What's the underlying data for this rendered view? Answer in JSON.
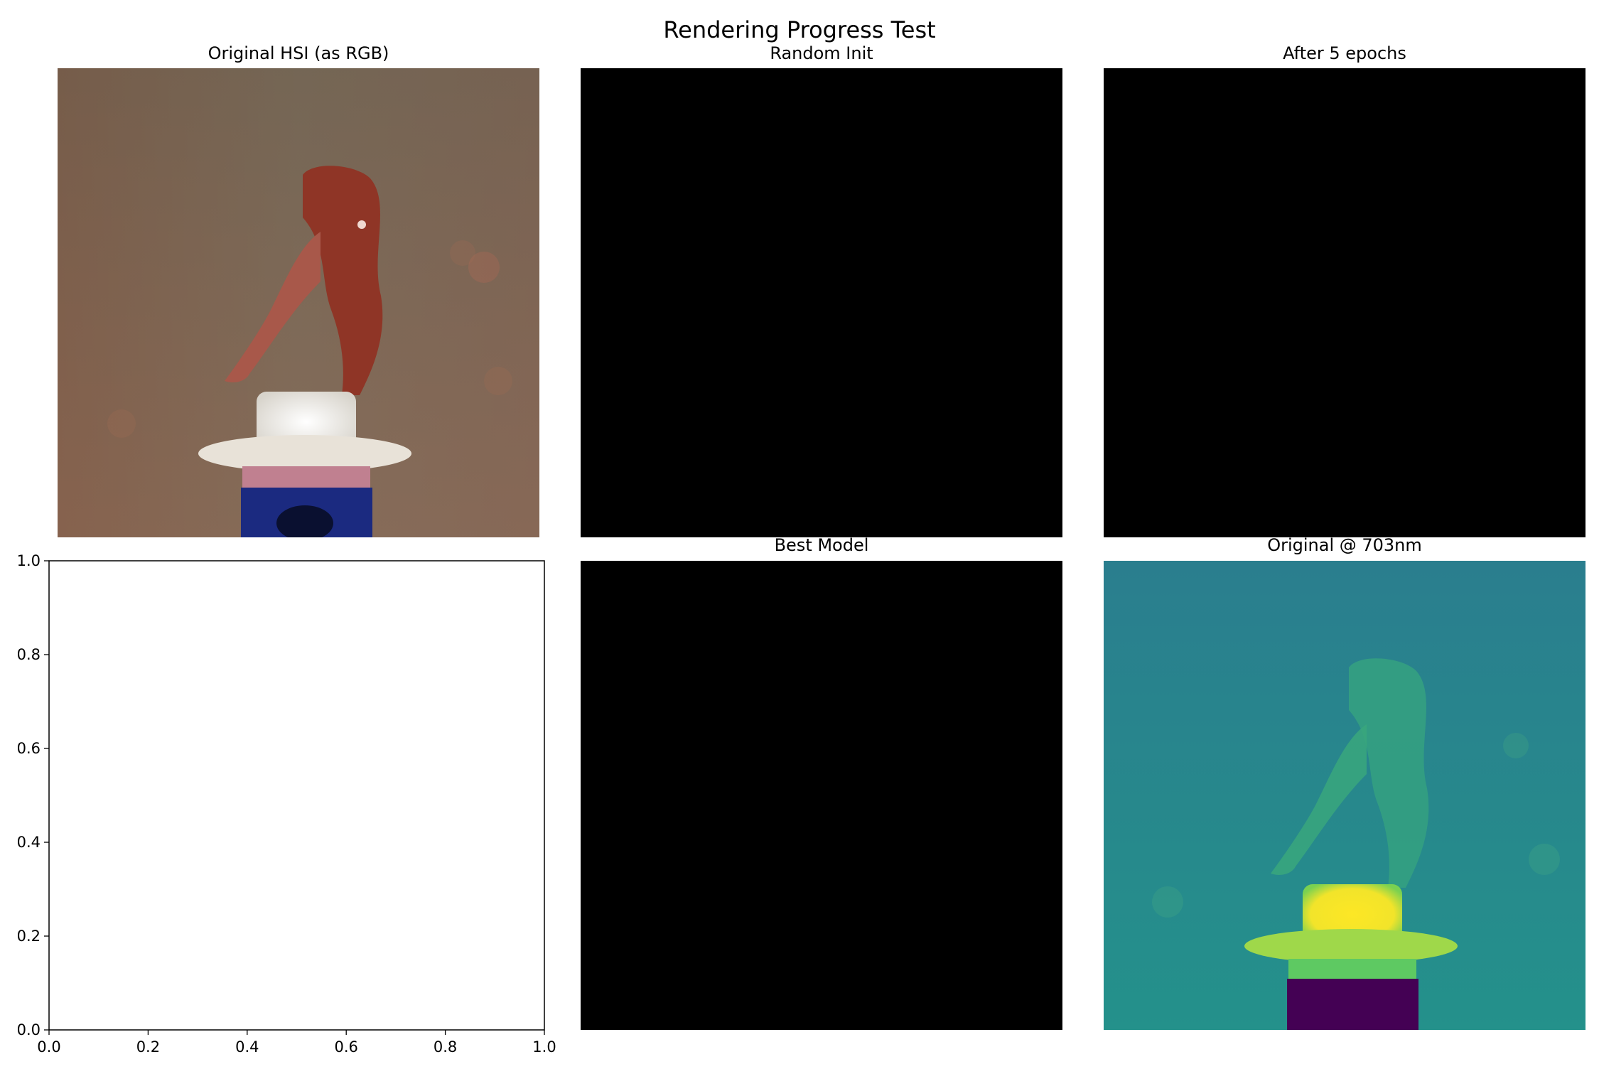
{
  "figure": {
    "suptitle": "Rendering Progress Test"
  },
  "panels": [
    {
      "title": "Original HSI (as RGB)",
      "kind": "image"
    },
    {
      "title": "Random Init",
      "kind": "image"
    },
    {
      "title": "After 5 epochs",
      "kind": "image"
    },
    {
      "title": "",
      "kind": "empty-axes"
    },
    {
      "title": "Best Model",
      "kind": "image"
    },
    {
      "title": "Original @ 703nm",
      "kind": "image"
    }
  ],
  "chart_data": {
    "type": "scatter",
    "title": "",
    "xlabel": "",
    "ylabel": "",
    "xlim": [
      0.0,
      1.0
    ],
    "ylim": [
      0.0,
      1.0
    ],
    "x_ticks": [
      "0.0",
      "0.2",
      "0.4",
      "0.6",
      "0.8",
      "1.0"
    ],
    "y_ticks": [
      "0.0",
      "0.2",
      "0.4",
      "0.6",
      "0.8",
      "1.0"
    ],
    "series": [],
    "grid": false
  },
  "colors": {
    "black_panel": "#000000",
    "rgb_background": "#7c6a57",
    "viridis_low": "#440154",
    "viridis_mid": "#21908c",
    "viridis_high": "#fde725"
  }
}
